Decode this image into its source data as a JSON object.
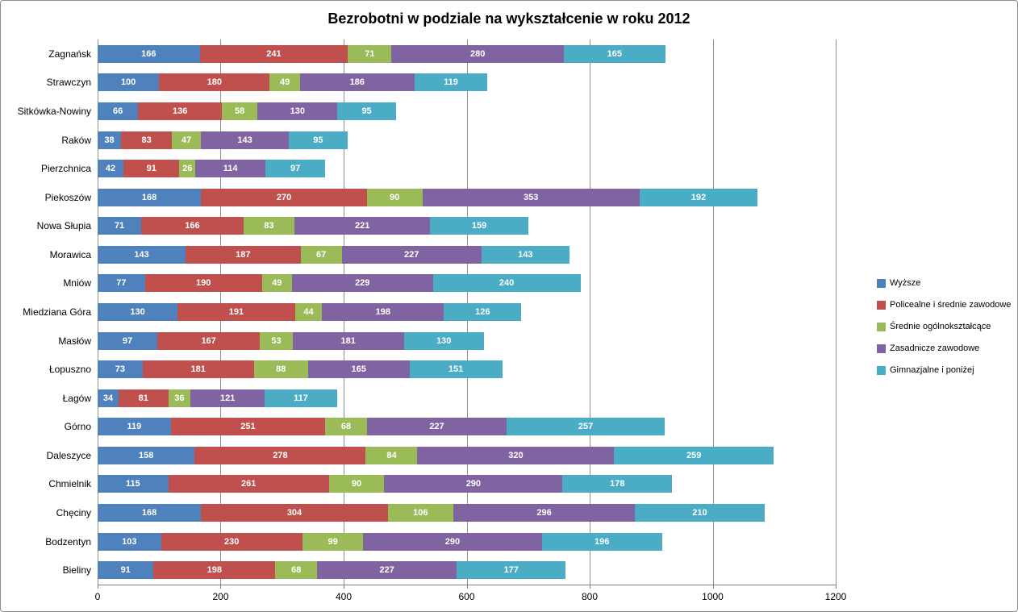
{
  "chart_data": {
    "type": "bar",
    "orientation": "horizontal-stacked",
    "title": "Bezrobotni w podziale na wykształcenie w roku 2012",
    "categories_order": "top-to-bottom",
    "categories": [
      "Zagnańsk",
      "Strawczyn",
      "Sitkówka-Nowiny",
      "Raków",
      "Pierzchnica",
      "Piekoszów",
      "Nowa Słupia",
      "Morawica",
      "Mniów",
      "Miedziana Góra",
      "Masłów",
      "Łopuszno",
      "Łagów",
      "Górno",
      "Daleszyce",
      "Chmielnik",
      "Chęciny",
      "Bodzentyn",
      "Bieliny"
    ],
    "series": [
      {
        "name": "Wyższe",
        "color": "#4F81BD",
        "values": [
          166,
          100,
          66,
          38,
          42,
          168,
          71,
          143,
          77,
          130,
          97,
          73,
          34,
          119,
          158,
          115,
          168,
          103,
          91
        ]
      },
      {
        "name": "Policealne i średnie zawodowe",
        "color": "#C0504D",
        "values": [
          241,
          180,
          136,
          83,
          91,
          270,
          166,
          187,
          190,
          191,
          167,
          181,
          81,
          251,
          278,
          261,
          304,
          230,
          198
        ]
      },
      {
        "name": "Średnie ogólnokształcące",
        "color": "#9BBB59",
        "values": [
          71,
          49,
          58,
          47,
          26,
          90,
          83,
          67,
          49,
          44,
          53,
          88,
          36,
          68,
          84,
          90,
          106,
          99,
          68
        ]
      },
      {
        "name": "Zasadnicze zawodowe",
        "color": "#8064A2",
        "values": [
          280,
          186,
          130,
          143,
          114,
          353,
          221,
          227,
          229,
          198,
          181,
          165,
          121,
          227,
          320,
          290,
          296,
          290,
          227
        ]
      },
      {
        "name": "Gimnazjalne i poniżej",
        "color": "#4BACC6",
        "values": [
          165,
          119,
          95,
          95,
          97,
          192,
          159,
          143,
          240,
          126,
          130,
          151,
          117,
          257,
          259,
          178,
          210,
          196,
          177
        ]
      }
    ],
    "xlim": [
      0,
      1200
    ],
    "x_ticks": [
      0,
      200,
      400,
      600,
      800,
      1000,
      1200
    ],
    "grid": true,
    "data_labels": true,
    "legend_position": "right"
  }
}
